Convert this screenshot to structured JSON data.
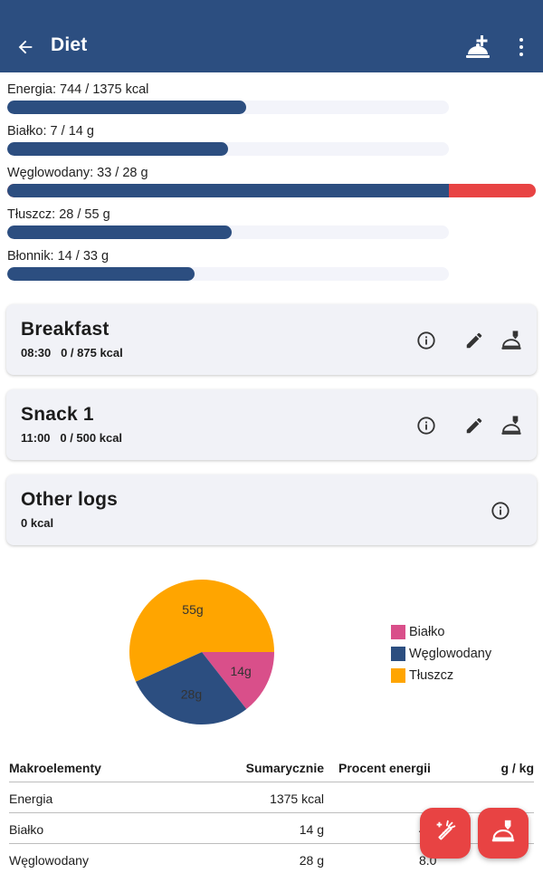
{
  "appbar": {
    "title": "Diet",
    "back_icon": "arrow-left-icon",
    "add_meal_icon": "room-service-plus-icon",
    "more_icon": "dots-vertical-icon"
  },
  "colors": {
    "primary": "#2c4e80",
    "accent": "#e84343",
    "protein": "#d94f8a",
    "carbs": "#2c4e80",
    "fat": "#ffa500",
    "card": "#f1f2f7"
  },
  "nutrients": [
    {
      "label": "Energia: 744 / 1375 kcal",
      "fraction": 0.541
    },
    {
      "label": "Białko: 7 / 14 g",
      "fraction": 0.5
    },
    {
      "label": "Węglowodany: 33 / 28 g",
      "fraction": 1.179
    },
    {
      "label": "Tłuszcz: 28 / 55 g",
      "fraction": 0.509
    },
    {
      "label": "Błonnik: 14 / 33 g",
      "fraction": 0.424
    }
  ],
  "meals": [
    {
      "name": "Breakfast",
      "meta": "08:30   0 / 875 kcal"
    },
    {
      "name": "Snack 1",
      "meta": "11:00   0 / 500 kcal"
    }
  ],
  "other_logs": {
    "name": "Other logs",
    "meta": "0 kcal"
  },
  "chart_data": {
    "type": "pie",
    "categories": [
      "Białko",
      "Węglowodany",
      "Tłuszcz"
    ],
    "values": [
      14,
      28,
      55
    ],
    "labels": [
      "14g",
      "28g",
      "55g"
    ],
    "colors": [
      "#d94f8a",
      "#2c4e80",
      "#ffa500"
    ],
    "legend": "right"
  },
  "table": {
    "headers": [
      "Makroelementy",
      "Sumarycznie",
      "Procent energii",
      "g / kg"
    ],
    "rows": [
      [
        "Energia",
        "1375 kcal",
        "",
        ""
      ],
      [
        "Białko",
        "14 g",
        "4.",
        ""
      ],
      [
        "Węglowodany",
        "28 g",
        "8.0",
        ""
      ]
    ]
  },
  "fabs": [
    {
      "icon": "food-carrot-add-icon"
    },
    {
      "icon": "room-service-add-icon"
    }
  ]
}
